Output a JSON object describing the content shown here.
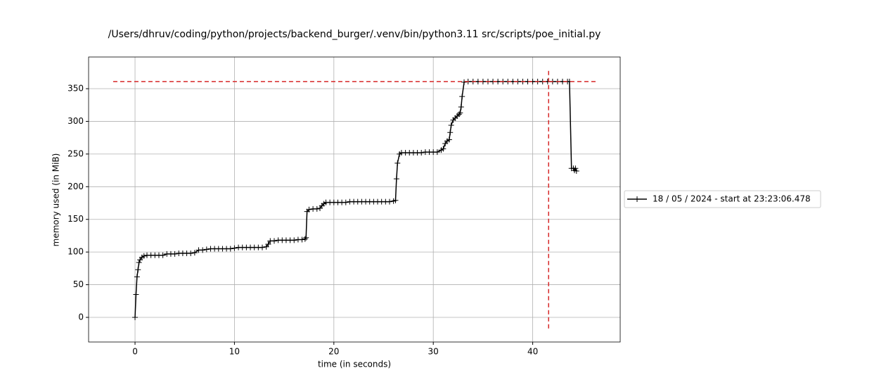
{
  "chart_data": {
    "type": "line",
    "title": "/Users/dhruv/coding/python/projects/backend_burger/.venv/bin/python3.11 src/scripts/poe_initial.py",
    "x_label": "time (in seconds)",
    "y_label": "memory used (in MiB)",
    "xlim": [
      -4.67,
      48.8
    ],
    "ylim": [
      -37.7,
      398.5
    ],
    "xticks": [
      0,
      10,
      20,
      30,
      40
    ],
    "yticks": [
      0,
      50,
      100,
      150,
      200,
      250,
      300,
      350
    ],
    "grid": true,
    "legend": "center right outside",
    "series": [
      {
        "name": "18 / 05 / 2024 - start at 23:23:06.478",
        "color": "#000000",
        "marker": "+",
        "x": [
          0,
          0.1,
          0.2,
          0.3,
          0.4,
          0.5,
          0.7,
          0.9,
          1.2,
          1.6,
          2.0,
          2.4,
          2.8,
          3.2,
          3.6,
          4.0,
          4.4,
          4.8,
          5.2,
          5.6,
          6.0,
          6.4,
          6.8,
          7.2,
          7.6,
          8.0,
          8.4,
          8.8,
          9.2,
          9.6,
          10.0,
          10.4,
          10.8,
          11.2,
          11.6,
          12.0,
          12.4,
          12.8,
          13.2,
          13.4,
          13.6,
          14.0,
          14.4,
          14.8,
          15.2,
          15.6,
          16.0,
          16.4,
          16.8,
          17.1,
          17.2,
          17.3,
          17.5,
          17.9,
          18.3,
          18.6,
          18.8,
          19.0,
          19.2,
          19.6,
          20.0,
          20.4,
          20.8,
          21.2,
          21.6,
          22.0,
          22.4,
          22.8,
          23.2,
          23.6,
          24.0,
          24.4,
          24.8,
          25.2,
          25.6,
          26.0,
          26.2,
          26.3,
          26.4,
          26.6,
          26.8,
          27.2,
          27.6,
          28.0,
          28.4,
          28.8,
          29.2,
          29.6,
          30.0,
          30.4,
          30.8,
          31.0,
          31.2,
          31.4,
          31.6,
          31.7,
          31.8,
          32.0,
          32.2,
          32.4,
          32.6,
          32.7,
          32.8,
          32.9,
          33.1,
          33.5,
          34.0,
          34.5,
          35.0,
          35.5,
          36.0,
          36.5,
          37.0,
          37.5,
          38.0,
          38.5,
          39.0,
          39.5,
          40.0,
          40.5,
          41.0,
          41.5,
          42.0,
          42.5,
          43.0,
          43.5,
          43.7,
          43.9,
          44.1,
          44.2,
          44.3,
          44.4
        ],
        "values": [
          0,
          35,
          62,
          73,
          84,
          88,
          92,
          94,
          95,
          95,
          95,
          95,
          95,
          97,
          97,
          97,
          98,
          98,
          98,
          98,
          99,
          103,
          103,
          104,
          105,
          105,
          105,
          105,
          105,
          105,
          106,
          107,
          107,
          107,
          107,
          107,
          107,
          107,
          108,
          112,
          117,
          117,
          118,
          118,
          118,
          118,
          118,
          119,
          119,
          120,
          122,
          162,
          165,
          166,
          166,
          167,
          171,
          174,
          176,
          176,
          176,
          176,
          176,
          176,
          177,
          177,
          177,
          177,
          177,
          177,
          177,
          177,
          177,
          177,
          177,
          178,
          179,
          212,
          236,
          250,
          252,
          252,
          252,
          252,
          252,
          252,
          253,
          253,
          253,
          253,
          256,
          258,
          266,
          270,
          272,
          283,
          294,
          302,
          305,
          308,
          311,
          313,
          322,
          338,
          360,
          361,
          361,
          361,
          361,
          361,
          361,
          361,
          361,
          361,
          361,
          361,
          361,
          361,
          361,
          361,
          361,
          361,
          361,
          361,
          361,
          361,
          361,
          228,
          228,
          225,
          228,
          224
        ]
      }
    ],
    "hlines": [
      {
        "y": 361,
        "xmin": -2.2,
        "xmax": 46.5,
        "color": "#d62728"
      }
    ],
    "vlines": [
      {
        "x": 41.6,
        "ymin": -17,
        "ymax": 378,
        "color": "#d62728"
      }
    ]
  }
}
